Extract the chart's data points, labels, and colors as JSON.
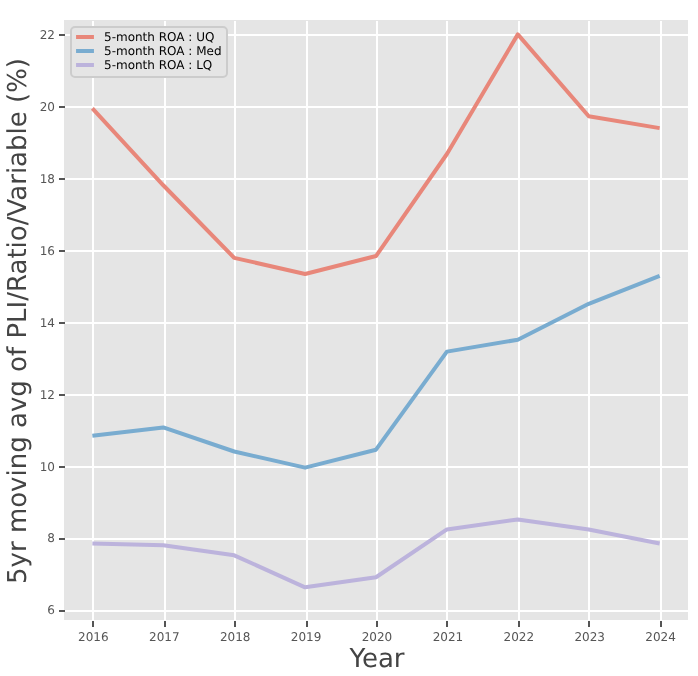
{
  "chart_data": {
    "type": "line",
    "xlabel": "Year",
    "ylabel": "5yr moving avg of PLI/Ratio/Variable (%)",
    "x": [
      2016,
      2017,
      2018,
      2019,
      2020,
      2021,
      2022,
      2023,
      2024
    ],
    "series": [
      {
        "name": "5-month ROA : UQ",
        "color": "#e8877a",
        "values": [
          19.94,
          17.8,
          15.78,
          15.33,
          15.83,
          18.67,
          22.0,
          19.72,
          19.39
        ]
      },
      {
        "name": "5-month ROA : Med",
        "color": "#79acd0",
        "values": [
          10.83,
          11.06,
          10.39,
          9.94,
          10.44,
          13.17,
          13.5,
          14.5,
          15.28
        ]
      },
      {
        "name": "5-month ROA : LQ",
        "color": "#bcb3dc",
        "values": [
          7.83,
          7.78,
          7.5,
          6.61,
          6.89,
          8.22,
          8.5,
          8.22,
          7.83
        ]
      }
    ],
    "xlim": [
      2015.6,
      2024.4
    ],
    "xticks": [
      2016,
      2017,
      2018,
      2019,
      2020,
      2021,
      2022,
      2023,
      2024
    ],
    "ylim": [
      5.7,
      22.4
    ],
    "yticks": [
      6,
      8,
      10,
      12,
      14,
      16,
      18,
      20,
      22
    ],
    "grid": true,
    "legend": "top left",
    "marker": "none",
    "line_style": "solid"
  }
}
